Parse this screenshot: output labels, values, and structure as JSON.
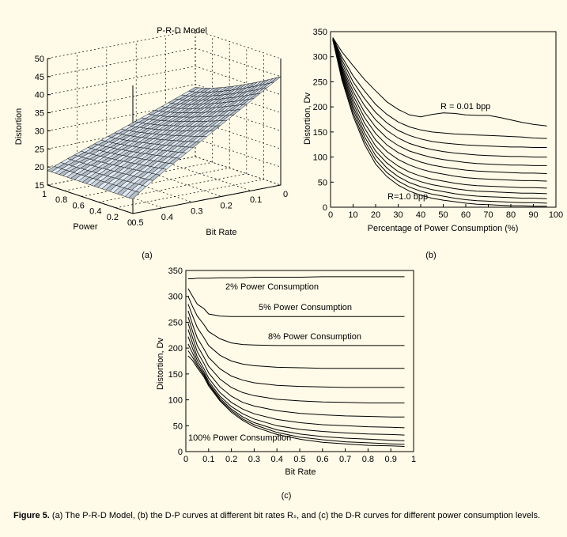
{
  "caption": {
    "label": "Figure 5.",
    "text": "(a) The P-R-D Model, (b) the D-P curves at different bit rates Rₛ, and (c) the D-R curves for different power consumption levels."
  },
  "chart_data": [
    {
      "id": "a",
      "type": "surface",
      "sublabel": "(a)",
      "title": "P-R-D Model",
      "zlabel": "Distortion",
      "xlabel": "Power",
      "ylabel": "Bit Rate",
      "zlim": [
        15,
        50
      ],
      "z_ticks": [
        "15",
        "20",
        "25",
        "30",
        "35",
        "40",
        "45",
        "50"
      ],
      "power_ticks": [
        "1",
        "0.8",
        "0.6",
        "0.4",
        "0.2",
        "0"
      ],
      "rate_ticks": [
        "0.5",
        "0.4",
        "0.3",
        "0.2",
        "0.1",
        "0"
      ],
      "grid": true
    },
    {
      "id": "b",
      "type": "line",
      "sublabel": "(b)",
      "xlabel": "Percentage of Power Consumption (%)",
      "ylabel": "Distortion, Dv",
      "xlim": [
        0,
        100
      ],
      "ylim": [
        0,
        350
      ],
      "x_ticks": [
        "0",
        "10",
        "20",
        "30",
        "40",
        "50",
        "60",
        "70",
        "80",
        "90",
        "100"
      ],
      "y_ticks": [
        "0",
        "50",
        "100",
        "150",
        "200",
        "250",
        "300",
        "350"
      ],
      "annotations": [
        {
          "text": "R = 0.01 bpp"
        },
        {
          "text": "R=1.0 bpp"
        }
      ],
      "x": [
        1,
        5,
        10,
        15,
        20,
        25,
        30,
        35,
        40,
        45,
        50,
        55,
        60,
        65,
        70,
        75,
        80,
        85,
        90,
        96
      ],
      "series": [
        {
          "values": [
            338,
            310,
            282,
            255,
            232,
            210,
            195,
            184,
            180,
            185,
            188,
            187,
            184,
            183,
            183,
            179,
            174,
            169,
            165,
            162
          ]
        },
        {
          "values": [
            338,
            300,
            262,
            232,
            205,
            185,
            170,
            160,
            154,
            150,
            148,
            146,
            145,
            144,
            143,
            142,
            141,
            140,
            138,
            137
          ]
        },
        {
          "values": [
            338,
            294,
            250,
            217,
            189,
            168,
            153,
            143,
            136,
            131,
            128,
            126,
            124,
            123,
            122,
            121,
            120,
            120,
            119,
            119
          ]
        },
        {
          "values": [
            337,
            288,
            240,
            203,
            174,
            153,
            138,
            127,
            120,
            115,
            111,
            108,
            106,
            104,
            103,
            102,
            101,
            101,
            100,
            100
          ]
        },
        {
          "values": [
            336,
            282,
            231,
            190,
            160,
            138,
            123,
            112,
            105,
            99,
            95,
            92,
            89,
            87,
            86,
            85,
            84,
            84,
            83,
            83
          ]
        },
        {
          "values": [
            336,
            278,
            223,
            179,
            147,
            124,
            109,
            98,
            90,
            84,
            80,
            77,
            74,
            72,
            71,
            70,
            69,
            68,
            68,
            67
          ]
        },
        {
          "values": [
            335,
            274,
            215,
            168,
            134,
            111,
            95,
            84,
            76,
            70,
            66,
            62,
            59,
            57,
            56,
            55,
            54,
            53,
            53,
            52
          ]
        },
        {
          "values": [
            335,
            270,
            208,
            158,
            122,
            98,
            82,
            70,
            62,
            56,
            52,
            48,
            45,
            43,
            42,
            41,
            40,
            39,
            39,
            38
          ]
        },
        {
          "values": [
            334,
            266,
            201,
            149,
            112,
            88,
            71,
            59,
            51,
            45,
            41,
            37,
            34,
            32,
            31,
            30,
            29,
            28,
            28,
            27
          ]
        },
        {
          "values": [
            334,
            262,
            195,
            141,
            103,
            78,
            61,
            49,
            41,
            35,
            31,
            27,
            24,
            22,
            21,
            20,
            19,
            18,
            18,
            17
          ]
        },
        {
          "values": [
            333,
            258,
            188,
            133,
            94,
            69,
            52,
            40,
            32,
            26,
            22,
            18,
            15,
            13,
            12,
            11,
            10,
            9,
            9,
            8
          ]
        },
        {
          "values": [
            333,
            254,
            182,
            126,
            86,
            61,
            44,
            32,
            24,
            18,
            14,
            11,
            8,
            6,
            5,
            4,
            3,
            3,
            2,
            2
          ]
        }
      ]
    },
    {
      "id": "c",
      "type": "line",
      "sublabel": "(c)",
      "xlabel": "Bit Rate",
      "ylabel": "Distortion, Dv",
      "xlim": [
        0,
        1
      ],
      "ylim": [
        0,
        350
      ],
      "x_ticks": [
        "0",
        "0.1",
        "0.2",
        "0.3",
        "0.4",
        "0.5",
        "0.6",
        "0.7",
        "0.8",
        "0.9",
        "1"
      ],
      "y_ticks": [
        "0",
        "50",
        "100",
        "150",
        "200",
        "250",
        "300",
        "350"
      ],
      "annotations": [
        {
          "text": "2% Power Consumption"
        },
        {
          "text": "5% Power Consumption"
        },
        {
          "text": "8% Power Consumption"
        },
        {
          "text": "100% Power Consumption"
        }
      ],
      "x": [
        0.01,
        0.03,
        0.05,
        0.08,
        0.1,
        0.15,
        0.2,
        0.25,
        0.3,
        0.4,
        0.5,
        0.6,
        0.7,
        0.8,
        0.9,
        0.96
      ],
      "series": [
        {
          "values": [
            334,
            334,
            335,
            335,
            335,
            336,
            336,
            336,
            337,
            337,
            337,
            338,
            338,
            338,
            338,
            338
          ]
        },
        {
          "values": [
            315,
            300,
            285,
            276,
            266,
            262,
            261,
            261,
            261,
            261,
            261,
            261,
            261,
            261,
            261,
            261
          ]
        },
        {
          "values": [
            300,
            280,
            262,
            245,
            232,
            218,
            210,
            207,
            206,
            205,
            205,
            205,
            205,
            205,
            205,
            205
          ]
        },
        {
          "values": [
            285,
            262,
            240,
            220,
            205,
            186,
            175,
            169,
            166,
            163,
            162,
            161,
            161,
            161,
            161,
            161
          ]
        },
        {
          "values": [
            272,
            245,
            220,
            198,
            182,
            160,
            146,
            138,
            133,
            128,
            126,
            125,
            124,
            124,
            124,
            124
          ]
        },
        {
          "values": [
            260,
            232,
            205,
            182,
            165,
            140,
            124,
            114,
            108,
            101,
            98,
            96,
            95,
            94,
            94,
            94
          ]
        },
        {
          "values": [
            248,
            220,
            193,
            170,
            152,
            125,
            107,
            95,
            88,
            79,
            74,
            71,
            69,
            68,
            67,
            67
          ]
        },
        {
          "values": [
            236,
            209,
            183,
            160,
            142,
            114,
            95,
            82,
            73,
            62,
            56,
            52,
            50,
            48,
            47,
            46
          ]
        },
        {
          "values": [
            222,
            199,
            176,
            154,
            136,
            107,
            87,
            73,
            63,
            50,
            43,
            39,
            36,
            34,
            33,
            32
          ]
        },
        {
          "values": [
            208,
            190,
            170,
            150,
            132,
            103,
            82,
            67,
            56,
            42,
            34,
            29,
            26,
            24,
            22,
            21
          ]
        },
        {
          "values": [
            195,
            182,
            166,
            147,
            130,
            100,
            79,
            63,
            52,
            37,
            28,
            23,
            19,
            17,
            15,
            14
          ]
        },
        {
          "values": [
            185,
            176,
            162,
            144,
            127,
            98,
            76,
            60,
            48,
            33,
            24,
            18,
            15,
            12,
            11,
            10
          ]
        }
      ]
    }
  ]
}
